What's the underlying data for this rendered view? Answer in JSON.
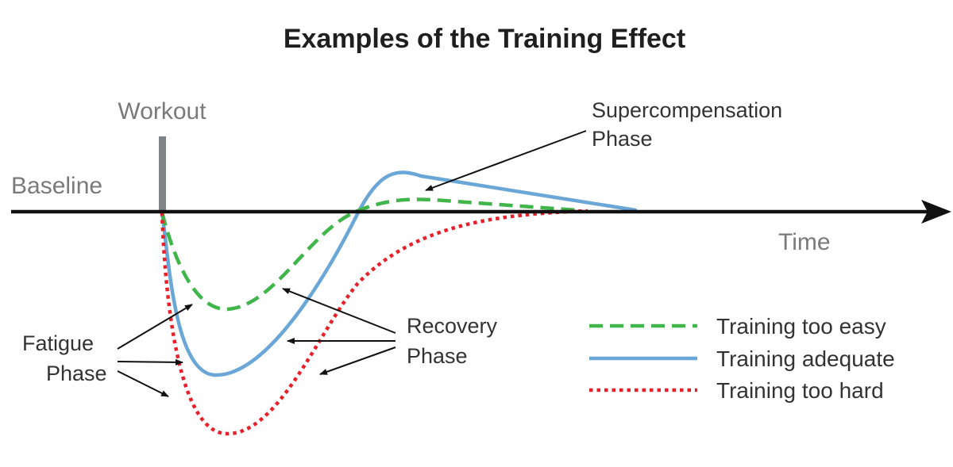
{
  "title": "Examples of the Training Effect",
  "labels": {
    "workout": "Workout",
    "baseline": "Baseline",
    "time": "Time",
    "supercompensation_line1": "Supercompensation",
    "supercompensation_line2": "Phase",
    "recovery_line1": "Recovery",
    "recovery_line2": "Phase",
    "fatigue_line1": "Fatigue",
    "fatigue_line2": "Phase"
  },
  "legend": [
    {
      "label": "Training too easy",
      "color": "#3fb54a",
      "style": "dashed"
    },
    {
      "label": "Training adequate",
      "color": "#6aa6d6",
      "style": "solid"
    },
    {
      "label": "Training too hard",
      "color": "#e8202a",
      "style": "dotted"
    }
  ],
  "colors": {
    "axis": "#111111",
    "workout_bar": "#7f8587",
    "arrow": "#111111"
  }
}
